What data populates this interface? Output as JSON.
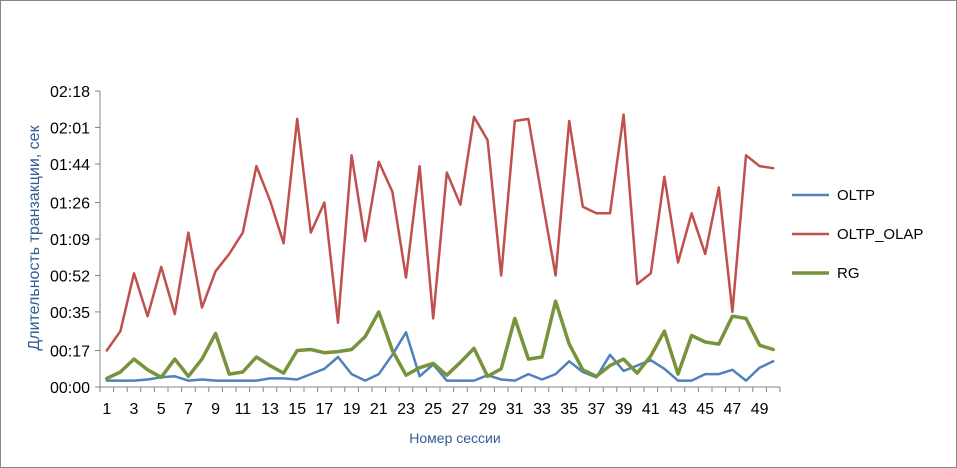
{
  "chart_data": {
    "type": "line",
    "title": "",
    "xlabel": "Номер сессии",
    "ylabel": "Длительность транзакции, сек",
    "ylim": [
      0,
      138
    ],
    "y_ticks": [
      {
        "value": 0,
        "label": "00:00"
      },
      {
        "value": 17,
        "label": "00:17"
      },
      {
        "value": 35,
        "label": "00:35"
      },
      {
        "value": 52,
        "label": "00:52"
      },
      {
        "value": 69,
        "label": "01:09"
      },
      {
        "value": 86,
        "label": "01:26"
      },
      {
        "value": 104,
        "label": "01:44"
      },
      {
        "value": 121,
        "label": "02:01"
      },
      {
        "value": 138,
        "label": "02:18"
      }
    ],
    "x": [
      1,
      2,
      3,
      4,
      5,
      6,
      7,
      8,
      9,
      10,
      11,
      12,
      13,
      14,
      15,
      16,
      17,
      18,
      19,
      20,
      21,
      22,
      23,
      24,
      25,
      26,
      27,
      28,
      29,
      30,
      31,
      32,
      33,
      34,
      35,
      36,
      37,
      38,
      39,
      40,
      41,
      42,
      43,
      44,
      45,
      46,
      47,
      48,
      49,
      50
    ],
    "x_tick_labels": [
      "1",
      "3",
      "5",
      "7",
      "9",
      "11",
      "13",
      "15",
      "17",
      "19",
      "21",
      "23",
      "25",
      "27",
      "29",
      "31",
      "33",
      "35",
      "37",
      "39",
      "41",
      "43",
      "45",
      "47",
      "49"
    ],
    "grid": false,
    "legend_position": "right",
    "series": [
      {
        "name": "OLTP",
        "color": "#4f81bd",
        "values": [
          3,
          3,
          3,
          3.5,
          4.5,
          5,
          3,
          3.5,
          3,
          3,
          3,
          3,
          4,
          4,
          3.5,
          6,
          8.5,
          14,
          6,
          3,
          6,
          15,
          25.5,
          5,
          10.5,
          3,
          3,
          3,
          5.5,
          3.5,
          3,
          6,
          3.5,
          6,
          12,
          7,
          4.5,
          15,
          7.5,
          10,
          12.5,
          8.5,
          3,
          3,
          6,
          6,
          8,
          3,
          9,
          12
        ]
      },
      {
        "name": "OLTP_OLAP",
        "color": "#c0504d",
        "values": [
          17,
          26,
          53,
          33,
          56,
          34,
          72,
          37,
          54,
          62,
          72,
          103,
          87,
          67,
          125,
          72,
          86,
          30,
          108,
          68,
          105,
          91,
          51,
          103,
          32,
          100,
          85,
          126,
          115,
          52,
          124,
          125,
          88,
          52,
          124,
          84,
          81,
          81,
          127,
          48,
          53,
          98,
          58,
          81,
          62,
          93,
          35,
          108,
          103,
          102
        ]
      },
      {
        "name": "RG",
        "color": "#77933c",
        "values": [
          4,
          7,
          13,
          8,
          4.5,
          13,
          5,
          13,
          25,
          6,
          7,
          14,
          10,
          6.5,
          17,
          17.5,
          16,
          16.5,
          17.5,
          23.5,
          35,
          17,
          5.5,
          9,
          11,
          5.5,
          11.5,
          18,
          5,
          8.5,
          32,
          13,
          14,
          40,
          20,
          8,
          5,
          10,
          13,
          6.5,
          14.5,
          26,
          6,
          24,
          21,
          20,
          33,
          32,
          19.5,
          17.5
        ]
      }
    ]
  }
}
